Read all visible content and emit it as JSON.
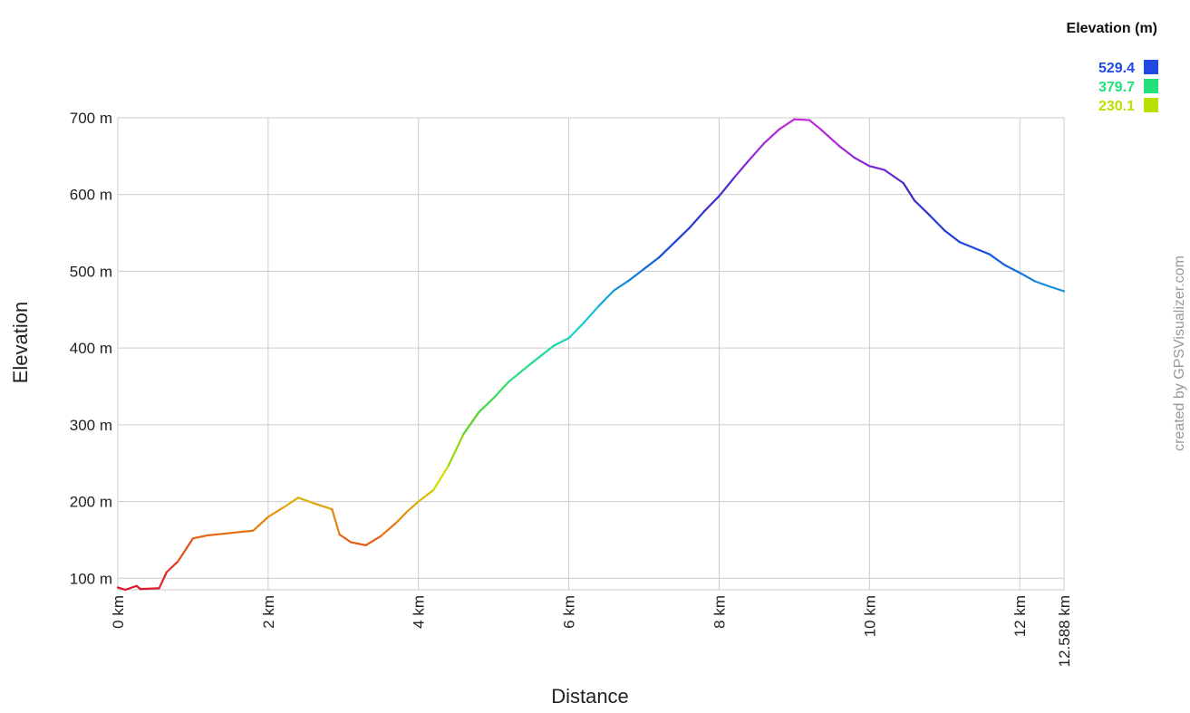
{
  "credit": "created by GPSVisualizer.com",
  "legend": {
    "title": "Elevation (m)",
    "items": [
      {
        "label": "529.4",
        "color": "#1f49e0"
      },
      {
        "label": "379.7",
        "color": "#22e07a"
      },
      {
        "label": "230.1",
        "color": "#b8e000"
      }
    ]
  },
  "chart_data": {
    "type": "line",
    "title": "",
    "xlabel": "Distance",
    "ylabel": "Elevation",
    "xlim": [
      0,
      12.588
    ],
    "ylim": [
      85,
      700
    ],
    "grid": true,
    "legend_placement": "top-right",
    "x_ticks": [
      {
        "value": 0,
        "label": "0 km"
      },
      {
        "value": 2,
        "label": "2 km"
      },
      {
        "value": 4,
        "label": "4 km"
      },
      {
        "value": 6,
        "label": "6 km"
      },
      {
        "value": 8,
        "label": "8 km"
      },
      {
        "value": 10,
        "label": "10 km"
      },
      {
        "value": 12,
        "label": "12 km"
      },
      {
        "value": 12.588,
        "label": "12.588 km"
      }
    ],
    "y_ticks": [
      {
        "value": 100,
        "label": "100 m"
      },
      {
        "value": 200,
        "label": "200 m"
      },
      {
        "value": 300,
        "label": "300 m"
      },
      {
        "value": 400,
        "label": "400 m"
      },
      {
        "value": 500,
        "label": "500 m"
      },
      {
        "value": 600,
        "label": "600 m"
      },
      {
        "value": 700,
        "label": "700 m"
      }
    ],
    "series": [
      {
        "points": [
          [
            0,
            88
          ],
          [
            0.1,
            85
          ],
          [
            0.25,
            90
          ],
          [
            0.3,
            86
          ],
          [
            0.55,
            87
          ],
          [
            0.65,
            108
          ],
          [
            0.8,
            122
          ],
          [
            1.0,
            152
          ],
          [
            1.2,
            156
          ],
          [
            1.4,
            158
          ],
          [
            1.6,
            160
          ],
          [
            1.8,
            162
          ],
          [
            2.0,
            180
          ],
          [
            2.2,
            192
          ],
          [
            2.4,
            205
          ],
          [
            2.6,
            198
          ],
          [
            2.85,
            190
          ],
          [
            2.95,
            157
          ],
          [
            3.1,
            147
          ],
          [
            3.3,
            143
          ],
          [
            3.5,
            155
          ],
          [
            3.7,
            172
          ],
          [
            3.85,
            187
          ],
          [
            4.0,
            200
          ],
          [
            4.2,
            215
          ],
          [
            4.4,
            247
          ],
          [
            4.6,
            288
          ],
          [
            4.8,
            316
          ],
          [
            5.0,
            335
          ],
          [
            5.2,
            356
          ],
          [
            5.5,
            380
          ],
          [
            5.8,
            403
          ],
          [
            6.0,
            413
          ],
          [
            6.2,
            433
          ],
          [
            6.4,
            455
          ],
          [
            6.6,
            475
          ],
          [
            6.8,
            488
          ],
          [
            7.0,
            503
          ],
          [
            7.2,
            518
          ],
          [
            7.4,
            537
          ],
          [
            7.6,
            556
          ],
          [
            7.8,
            578
          ],
          [
            8.0,
            598
          ],
          [
            8.2,
            622
          ],
          [
            8.4,
            645
          ],
          [
            8.6,
            667
          ],
          [
            8.8,
            685
          ],
          [
            9.0,
            698
          ],
          [
            9.2,
            697
          ],
          [
            9.35,
            685
          ],
          [
            9.6,
            663
          ],
          [
            9.8,
            648
          ],
          [
            10.0,
            637
          ],
          [
            10.2,
            632
          ],
          [
            10.45,
            615
          ],
          [
            10.6,
            592
          ],
          [
            10.8,
            573
          ],
          [
            11.0,
            553
          ],
          [
            11.2,
            538
          ],
          [
            11.4,
            530
          ],
          [
            11.6,
            522
          ],
          [
            11.8,
            508
          ],
          [
            12.0,
            498
          ],
          [
            12.2,
            487
          ],
          [
            12.4,
            480
          ],
          [
            12.588,
            474
          ]
        ]
      }
    ]
  }
}
